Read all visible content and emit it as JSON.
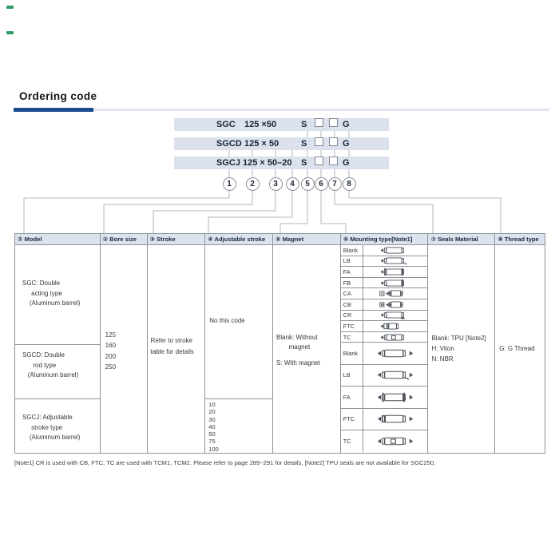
{
  "heading": "Ordering code",
  "codes": {
    "rows": [
      {
        "model": "SGC",
        "size": "125 ×50",
        "magnet": "S",
        "thread": "G"
      },
      {
        "model": "SGCD",
        "size": "125 × 50",
        "magnet": "S",
        "thread": "G"
      },
      {
        "model": "SGCJ",
        "size": "125 × 50–20",
        "magnet": "S",
        "thread": "G"
      }
    ],
    "placeholder_box_icon": "empty-option-box",
    "positions": [
      "1",
      "2",
      "3",
      "4",
      "5",
      "6",
      "7",
      "8"
    ]
  },
  "table": {
    "headers": [
      "① Model",
      "② Bore size",
      "③ Stroke",
      "④ Adjustable stroke",
      "⑤ Magnet",
      "⑥ Mounting type[Note1]",
      "⑦ Seals Material",
      "⑧ Thread type"
    ],
    "model_cells": [
      [
        "SGC: Double",
        "     acting type",
        "    (Aluminum barrel)"
      ],
      [
        "SGCD: Double",
        "      rod type",
        "   (Aluminum barrel)"
      ],
      [
        "SGCJ: Adjustable",
        "     stroke type",
        "    (Aluminum barrel)"
      ]
    ],
    "bore_sizes": [
      "125",
      "160",
      "200",
      "250"
    ],
    "stroke_note": [
      "Refer to stroke",
      "table for details"
    ],
    "adjustable": {
      "top_note": "No this code",
      "values": [
        "10",
        "20",
        "30",
        "40",
        "50",
        "75",
        "100"
      ]
    },
    "magnet": {
      "blank_lines": [
        "Blank: Without",
        "       magnet"
      ],
      "s_line": "S: With magnet"
    },
    "mounting": {
      "rows": [
        {
          "code": "Blank",
          "icon": "cylinder-basic-icon"
        },
        {
          "code": "LB",
          "icon": "cylinder-foot-lb-icon"
        },
        {
          "code": "FA",
          "icon": "cylinder-flange-fa-icon"
        },
        {
          "code": "FB",
          "icon": "cylinder-flange-fb-icon"
        },
        {
          "code": "CA",
          "icon": "cylinder-clevis-ca-icon"
        },
        {
          "code": "CB",
          "icon": "cylinder-clevis-cb-icon"
        },
        {
          "code": "CR",
          "icon": "cylinder-pivot-cr-icon"
        },
        {
          "code": "FTC",
          "icon": "cylinder-compact-ftc-icon"
        },
        {
          "code": "TC",
          "icon": "cylinder-trunnion-tc-icon"
        },
        {
          "code": "Blank",
          "icon": "cylinder-doublerod-basic-icon"
        },
        {
          "code": "LB",
          "icon": "cylinder-doublerod-lb-icon"
        },
        {
          "code": "FA",
          "icon": "cylinder-doublerod-fa-icon"
        },
        {
          "code": "FTC",
          "icon": "cylinder-doublerod-ftc-icon"
        },
        {
          "code": "TC",
          "icon": "cylinder-doublerod-tc-icon"
        }
      ]
    },
    "seals": [
      "Blank: TPU [Note2]",
      "H: Viton",
      "N: NBR"
    ],
    "thread": "G: G Thread"
  },
  "footnote": "[Note1] CR is used with CB, FTC, TC are used with TCM1, TCM2. Please refer to page 289~291 for details,  [Note2] TPU seals are not available for SGC250,"
}
